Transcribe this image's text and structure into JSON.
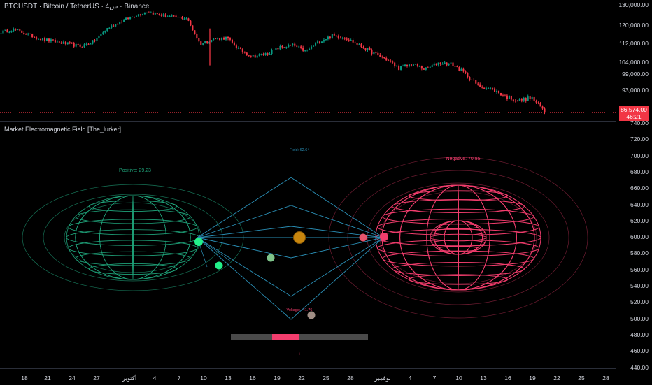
{
  "header": {
    "symbol_line": "BTCUSDT · Bitcoin / TetherUS · 4س · Binance"
  },
  "indicator": {
    "title": "Market Electromagnetic Field [The_lurker]"
  },
  "price_axis": {
    "ticks": [
      "130,000.00",
      "120,000.00",
      "112,000.00",
      "104,000.00",
      "99,000.00",
      "93,000.00"
    ],
    "current_price": "86,574.00",
    "countdown": "46:21"
  },
  "indicator_axis": {
    "ticks": [
      "740.00",
      "720.00",
      "700.00",
      "680.00",
      "660.00",
      "640.00",
      "620.00",
      "600.00",
      "580.00",
      "560.00",
      "540.00",
      "520.00",
      "500.00",
      "480.00",
      "460.00",
      "440.00"
    ]
  },
  "time_axis": {
    "ticks": [
      "18",
      "21",
      "24",
      "27",
      "أكتوبر",
      "4",
      "7",
      "10",
      "13",
      "16",
      "19",
      "22",
      "25",
      "28",
      "نوفمبر",
      "4",
      "7",
      "10",
      "13",
      "16",
      "19",
      "22",
      "25",
      "28"
    ]
  },
  "field": {
    "positive_label": "Positive: 29.23",
    "negative_label": "Negative: 70.85",
    "field_label": "Field: 62.64",
    "voltage_label": "Voltage: -41.76",
    "bottom_marker": "ı",
    "positive_color": "#1fa37a",
    "negative_color": "#f23d6d",
    "line_color": "#2a8fb6",
    "core_color": "#c8860e"
  },
  "chart_data": {
    "type": "candlestick",
    "title": "BTCUSDT · Bitcoin / TetherUS · 4س · Binance",
    "ylim": [
      84000,
      131000
    ],
    "y_scale": "log",
    "approx_closes": [
      116500,
      117500,
      115500,
      113500,
      112500,
      111500,
      110500,
      112500,
      118000,
      121000,
      123500,
      125500,
      124000,
      123000,
      122500,
      111500,
      113500,
      114000,
      109000,
      106500,
      107500,
      110000,
      111000,
      108500,
      112500,
      115000,
      114000,
      111000,
      108000,
      105500,
      102000,
      103500,
      101500,
      104000,
      103500,
      100000,
      95500,
      94500,
      92000,
      90500,
      91500,
      87000
    ],
    "last_price": 86574,
    "indicator_ylim": [
      440,
      740
    ]
  }
}
